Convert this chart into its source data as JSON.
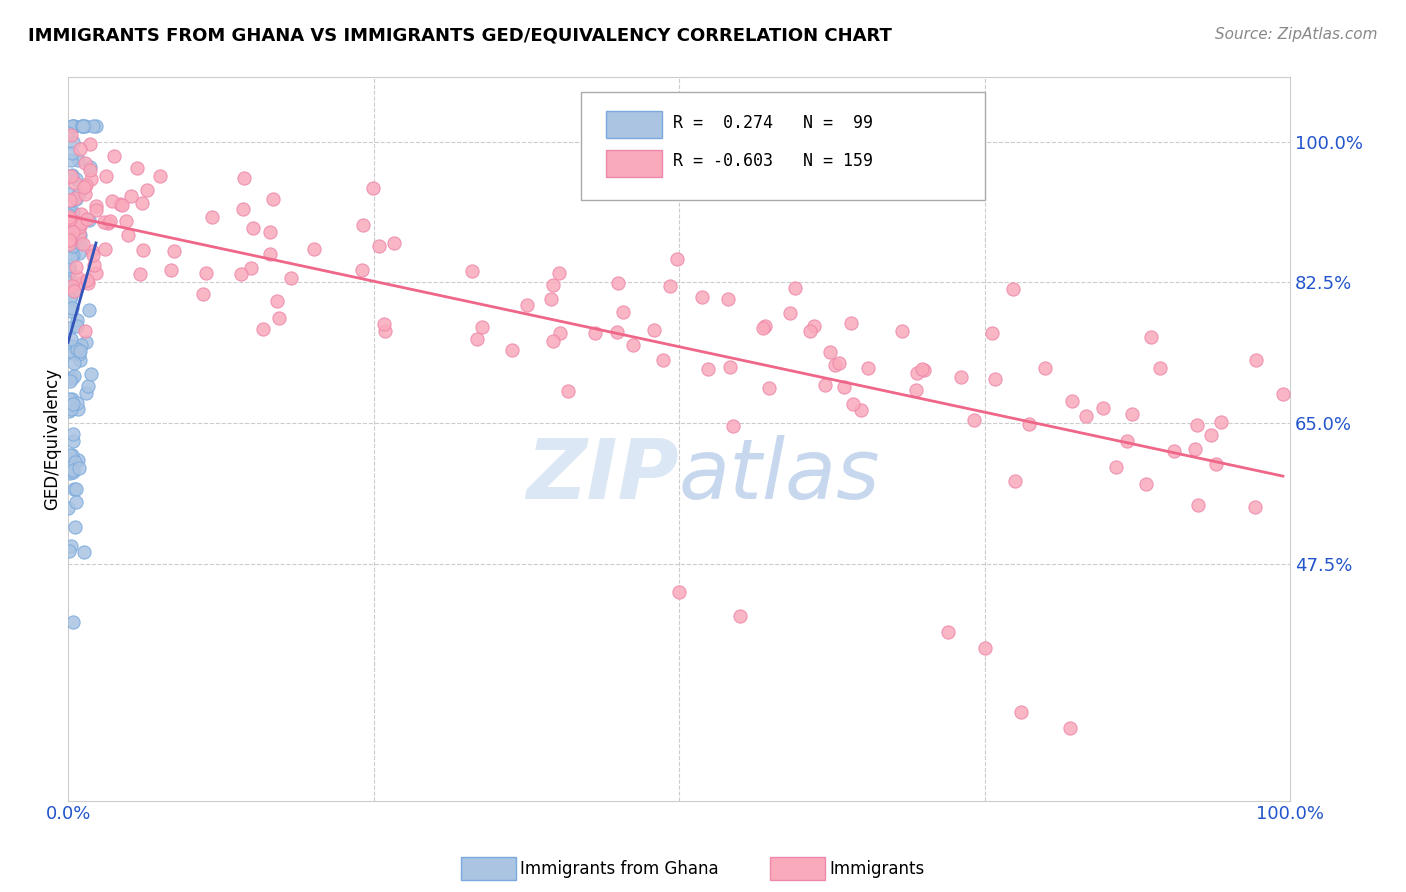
{
  "title": "IMMIGRANTS FROM GHANA VS IMMIGRANTS GED/EQUIVALENCY CORRELATION CHART",
  "source": "Source: ZipAtlas.com",
  "ylabel": "GED/Equivalency",
  "legend_label1": "Immigrants from Ghana",
  "legend_label2": "Immigrants",
  "r1": 0.274,
  "n1": 99,
  "r2": -0.603,
  "n2": 159,
  "color_blue": "#aac4e2",
  "color_pink": "#f9aabb",
  "line_blue": "#3355bb",
  "line_pink": "#ee6688",
  "watermark_color": "#ccddf0",
  "ytick_labels": [
    "100.0%",
    "82.5%",
    "65.0%",
    "47.5%"
  ],
  "ytick_values": [
    1.0,
    0.825,
    0.65,
    0.475
  ],
  "xlim": [
    0.0,
    1.0
  ],
  "ylim": [
    0.18,
    1.08
  ],
  "title_fontsize": 13,
  "source_fontsize": 11,
  "tick_fontsize": 13,
  "ylabel_fontsize": 12
}
